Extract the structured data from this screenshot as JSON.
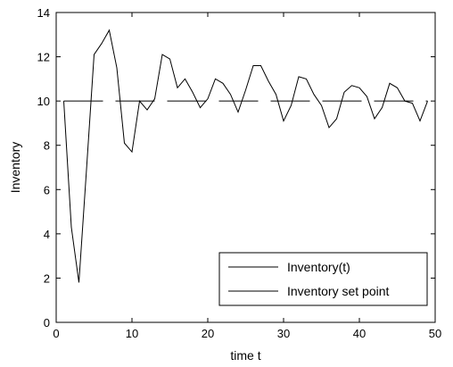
{
  "chart_data": {
    "type": "line",
    "title": "",
    "xlabel": "time t",
    "ylabel": "Inventory",
    "xlim": [
      0,
      50
    ],
    "ylim": [
      0,
      14
    ],
    "xticks": [
      0,
      10,
      20,
      30,
      40,
      50
    ],
    "yticks": [
      0,
      2,
      4,
      6,
      8,
      10,
      12,
      14
    ],
    "grid": false,
    "legend_position": "bottom-right",
    "series": [
      {
        "name": "Inventory(t)",
        "style": "solid",
        "color": "#000000",
        "x": [
          1,
          2,
          3,
          4,
          5,
          6,
          7,
          8,
          9,
          10,
          11,
          12,
          13,
          14,
          15,
          16,
          17,
          18,
          19,
          20,
          21,
          22,
          23,
          24,
          25,
          26,
          27,
          28,
          29,
          30,
          31,
          32,
          33,
          34,
          35,
          36,
          37,
          38,
          39,
          40,
          41,
          42,
          43,
          44,
          45,
          46,
          47,
          48,
          49
        ],
        "y": [
          10.0,
          4.3,
          1.8,
          6.9,
          12.1,
          12.6,
          13.2,
          11.5,
          8.1,
          7.7,
          10.0,
          9.6,
          10.1,
          12.1,
          11.9,
          10.6,
          11.0,
          10.4,
          9.7,
          10.1,
          11.0,
          10.8,
          10.3,
          9.5,
          10.5,
          11.6,
          11.6,
          10.9,
          10.3,
          9.1,
          9.8,
          11.1,
          11.0,
          10.3,
          9.8,
          8.8,
          9.2,
          10.4,
          10.7,
          10.6,
          10.2,
          9.2,
          9.7,
          10.8,
          10.6,
          10.0,
          9.9,
          9.1,
          10.0
        ]
      },
      {
        "name": "Inventory set point",
        "style": "dashed",
        "color": "#000000",
        "x": [
          1,
          49
        ],
        "y": [
          10,
          10
        ]
      }
    ]
  }
}
